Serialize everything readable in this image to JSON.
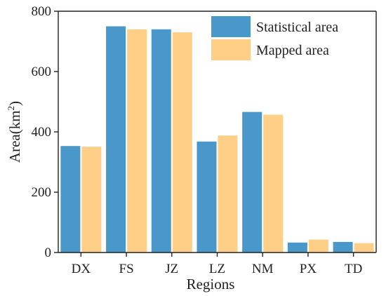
{
  "chart_data": {
    "type": "bar",
    "title": "",
    "xlabel": "Regions",
    "ylabel": "Area(km",
    "ylabel_sup": "2",
    "ylabel_close": ")",
    "categories": [
      "DX",
      "FS",
      "JZ",
      "LZ",
      "NM",
      "PX",
      "TD"
    ],
    "ylim": [
      0,
      800
    ],
    "yticks": [
      0,
      200,
      400,
      600,
      800
    ],
    "grid": false,
    "legend_position": "top-right",
    "series": [
      {
        "name": "Statistical area",
        "color": "#4A97C9",
        "values": [
          353,
          750,
          740,
          368,
          466,
          33,
          35
        ]
      },
      {
        "name": "Mapped area",
        "color": "#FFCF88",
        "values": [
          351,
          740,
          730,
          388,
          457,
          43,
          31
        ]
      }
    ]
  }
}
